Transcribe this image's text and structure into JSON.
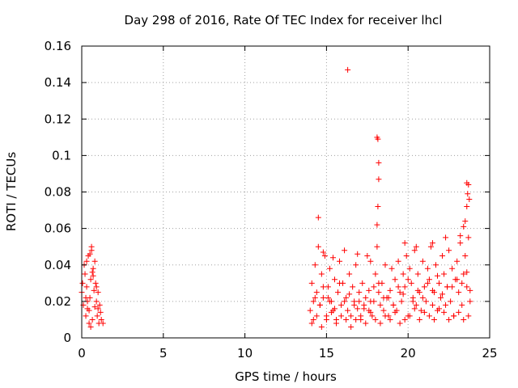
{
  "chart_data": {
    "type": "scatter",
    "title": "Day 298 of 2016, Rate Of TEC Index for receiver lhcl",
    "xlabel": "GPS time / hours",
    "ylabel": "ROTI / TECUs",
    "xlim": [
      0,
      25
    ],
    "ylim": [
      0,
      0.16
    ],
    "grid": true,
    "marker": "+",
    "color": "#ff0000",
    "x_ticks": [
      0,
      5,
      10,
      15,
      20,
      25
    ],
    "x_tick_labels": [
      "0",
      "5",
      "10",
      "15",
      "20",
      "25"
    ],
    "y_ticks": [
      0,
      0.02,
      0.04,
      0.06,
      0.08,
      0.1,
      0.12,
      0.14,
      0.16
    ],
    "y_tick_labels": [
      "0",
      "0.02",
      "0.04",
      "0.06",
      "0.08",
      "0.1",
      "0.12",
      "0.14",
      "0.16"
    ],
    "series": [
      {
        "name": "ROTI",
        "x": [
          0.0,
          0.05,
          0.1,
          0.15,
          0.2,
          0.25,
          0.3,
          0.35,
          0.4,
          0.45,
          0.5,
          0.55,
          0.6,
          0.65,
          0.7,
          0.75,
          0.8,
          0.85,
          0.9,
          0.95,
          1.0,
          1.05,
          1.1,
          1.15,
          1.2,
          1.3,
          0.3,
          0.5,
          0.6,
          0.7,
          0.8,
          0.45,
          0.55,
          0.65,
          0.25,
          0.35,
          0.9,
          1.0,
          14.0,
          14.1,
          14.2,
          14.3,
          14.4,
          14.5,
          14.6,
          14.7,
          14.8,
          14.9,
          15.0,
          15.1,
          15.2,
          15.3,
          15.4,
          15.5,
          15.6,
          15.7,
          15.8,
          15.9,
          16.0,
          16.1,
          16.2,
          16.3,
          16.4,
          16.5,
          16.6,
          16.7,
          16.8,
          16.9,
          17.0,
          17.1,
          17.2,
          17.3,
          17.4,
          17.5,
          17.6,
          17.7,
          17.8,
          17.9,
          18.0,
          18.1,
          18.2,
          18.3,
          18.4,
          18.5,
          18.6,
          18.7,
          18.8,
          18.9,
          19.0,
          19.1,
          19.2,
          19.3,
          19.4,
          19.5,
          19.6,
          19.7,
          19.8,
          19.9,
          20.0,
          20.1,
          20.2,
          20.3,
          20.4,
          20.5,
          20.6,
          20.7,
          20.8,
          20.9,
          21.0,
          21.1,
          21.2,
          21.3,
          21.4,
          21.5,
          21.6,
          21.7,
          21.8,
          21.9,
          22.0,
          22.1,
          22.2,
          22.3,
          22.4,
          22.5,
          22.6,
          22.7,
          22.8,
          22.9,
          23.0,
          23.1,
          23.2,
          23.3,
          23.4,
          23.5,
          23.6,
          23.7,
          23.8,
          14.1,
          14.4,
          14.7,
          15.0,
          15.3,
          15.6,
          15.9,
          16.2,
          16.5,
          16.8,
          17.1,
          17.4,
          17.7,
          18.0,
          18.3,
          18.6,
          18.9,
          19.2,
          19.5,
          19.8,
          20.1,
          20.4,
          20.7,
          21.0,
          21.3,
          21.6,
          21.9,
          22.2,
          22.5,
          22.8,
          23.1,
          23.4,
          23.7,
          14.3,
          14.8,
          15.2,
          15.8,
          16.4,
          17.0,
          17.6,
          18.2,
          18.8,
          19.4,
          20.0,
          20.6,
          21.2,
          21.8,
          22.4,
          23.0,
          23.6,
          14.2,
          14.6,
          15.1,
          15.5,
          16.1,
          16.7,
          17.3,
          17.9,
          18.5,
          19.1,
          19.7,
          20.3,
          20.9,
          21.5,
          22.1,
          22.7,
          23.3,
          23.8,
          14.5,
          16.3,
          18.1,
          18.15,
          18.2,
          18.2,
          18.15,
          18.1,
          23.6,
          23.7,
          23.65,
          23.75,
          23.6,
          23.5,
          23.4,
          23.2,
          19.8,
          20.5,
          21.5,
          22.3,
          14.8,
          15.4,
          16.9,
          17.7
        ],
        "y": [
          0.025,
          0.03,
          0.018,
          0.04,
          0.035,
          0.012,
          0.028,
          0.02,
          0.045,
          0.015,
          0.022,
          0.032,
          0.048,
          0.01,
          0.038,
          0.026,
          0.017,
          0.03,
          0.02,
          0.012,
          0.025,
          0.008,
          0.018,
          0.014,
          0.01,
          0.008,
          0.042,
          0.046,
          0.05,
          0.034,
          0.042,
          0.008,
          0.006,
          0.036,
          0.022,
          0.016,
          0.028,
          0.016,
          0.015,
          0.03,
          0.01,
          0.04,
          0.025,
          0.05,
          0.018,
          0.035,
          0.022,
          0.045,
          0.012,
          0.028,
          0.038,
          0.02,
          0.015,
          0.032,
          0.01,
          0.025,
          0.042,
          0.018,
          0.03,
          0.048,
          0.022,
          0.015,
          0.035,
          0.012,
          0.028,
          0.02,
          0.04,
          0.016,
          0.025,
          0.01,
          0.03,
          0.018,
          0.022,
          0.045,
          0.015,
          0.02,
          0.012,
          0.028,
          0.035,
          0.05,
          0.025,
          0.018,
          0.03,
          0.015,
          0.04,
          0.022,
          0.012,
          0.026,
          0.038,
          0.018,
          0.032,
          0.015,
          0.042,
          0.025,
          0.02,
          0.035,
          0.028,
          0.045,
          0.012,
          0.038,
          0.03,
          0.022,
          0.048,
          0.018,
          0.035,
          0.025,
          0.015,
          0.042,
          0.028,
          0.02,
          0.038,
          0.032,
          0.05,
          0.018,
          0.025,
          0.04,
          0.015,
          0.03,
          0.022,
          0.045,
          0.035,
          0.018,
          0.028,
          0.048,
          0.02,
          0.038,
          0.012,
          0.032,
          0.042,
          0.025,
          0.052,
          0.018,
          0.035,
          0.045,
          0.028,
          0.055,
          0.02,
          0.008,
          0.012,
          0.006,
          0.01,
          0.014,
          0.008,
          0.012,
          0.01,
          0.006,
          0.01,
          0.012,
          0.008,
          0.014,
          0.01,
          0.008,
          0.012,
          0.01,
          0.014,
          0.008,
          0.01,
          0.012,
          0.016,
          0.01,
          0.014,
          0.012,
          0.01,
          0.016,
          0.014,
          0.01,
          0.012,
          0.014,
          0.01,
          0.012,
          0.022,
          0.028,
          0.02,
          0.03,
          0.024,
          0.02,
          0.026,
          0.03,
          0.022,
          0.028,
          0.032,
          0.026,
          0.03,
          0.034,
          0.028,
          0.032,
          0.036,
          0.02,
          0.018,
          0.022,
          0.016,
          0.02,
          0.018,
          0.016,
          0.02,
          0.022,
          0.018,
          0.024,
          0.02,
          0.022,
          0.026,
          0.024,
          0.028,
          0.03,
          0.026,
          0.066,
          0.147,
          0.11,
          0.109,
          0.096,
          0.087,
          0.072,
          0.062,
          0.085,
          0.084,
          0.079,
          0.076,
          0.072,
          0.064,
          0.061,
          0.056,
          0.052,
          0.05,
          0.052,
          0.055,
          0.047,
          0.044,
          0.046,
          0.042
        ]
      }
    ]
  }
}
